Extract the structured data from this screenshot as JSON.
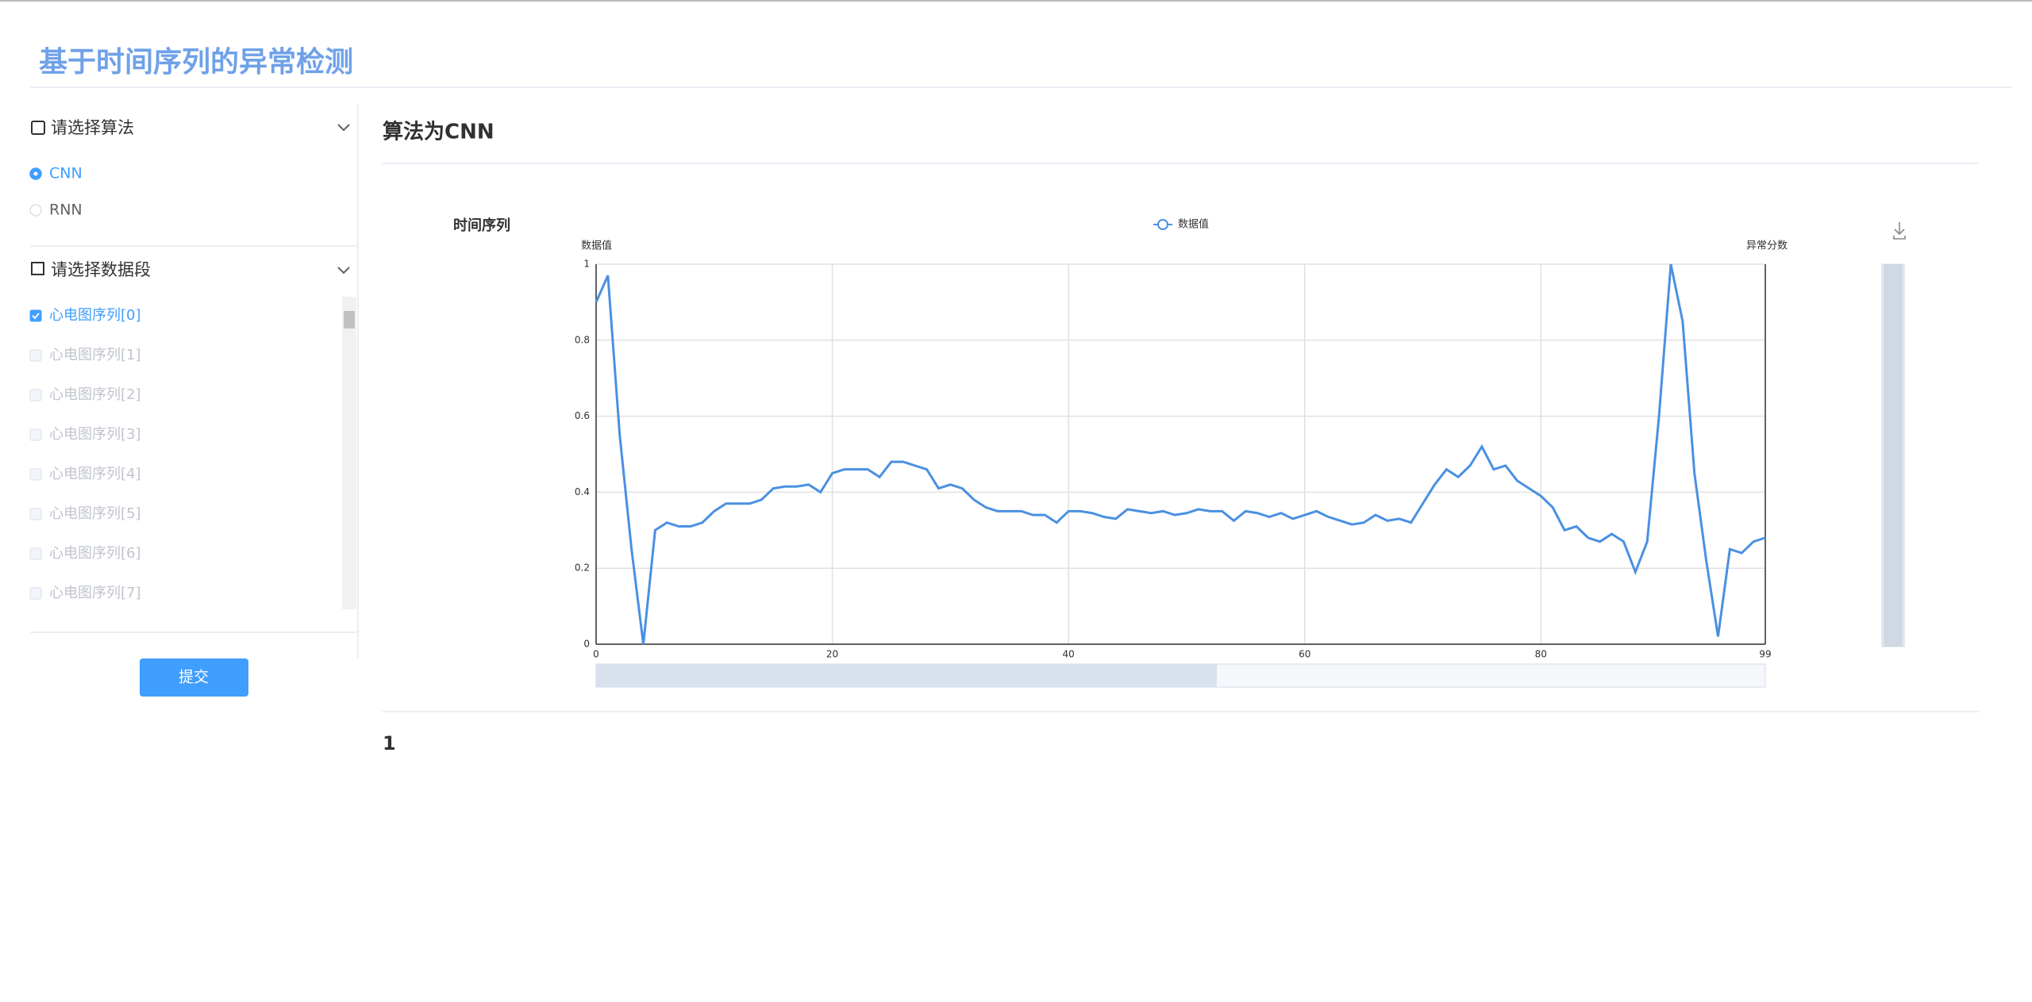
{
  "header": {
    "title": "基于时间序列的异常检测"
  },
  "sidebar": {
    "algorithm": {
      "title": "请选择算法",
      "options": [
        "CNN",
        "RNN"
      ],
      "selected": 0
    },
    "segment": {
      "title": "请选择数据段",
      "options": [
        "心电图序列[0]",
        "心电图序列[1]",
        "心电图序列[2]",
        "心电图序列[3]",
        "心电图序列[4]",
        "心电图序列[5]",
        "心电图序列[6]",
        "心电图序列[7]"
      ],
      "checked": 0
    },
    "submit": "提交"
  },
  "main": {
    "heading": "算法为CNN",
    "result": "1"
  },
  "chart_data": {
    "type": "line",
    "title": "时间序列",
    "y_label": "数据值",
    "y2_label": "异常分数",
    "x": [
      0,
      1,
      2,
      3,
      4,
      5,
      6,
      7,
      8,
      9,
      10,
      11,
      12,
      13,
      14,
      15,
      16,
      17,
      18,
      19,
      20,
      21,
      22,
      23,
      24,
      25,
      26,
      27,
      28,
      29,
      30,
      31,
      32,
      33,
      34,
      35,
      36,
      37,
      38,
      39,
      40,
      41,
      42,
      43,
      44,
      45,
      46,
      47,
      48,
      49,
      50,
      51,
      52,
      53,
      54,
      55,
      56,
      57,
      58,
      59,
      60,
      61,
      62,
      63,
      64,
      65,
      66,
      67,
      68,
      69,
      70,
      71,
      72,
      73,
      74,
      75,
      76,
      77,
      78,
      79,
      80,
      81,
      82,
      83,
      84,
      85,
      86,
      87,
      88,
      89,
      90,
      91,
      92,
      93,
      94,
      95,
      96,
      97,
      98,
      99
    ],
    "series": [
      {
        "name": "数据值",
        "color": "#4a90e2",
        "values": [
          0.9,
          0.97,
          0.55,
          0.25,
          0.0,
          0.3,
          0.32,
          0.31,
          0.31,
          0.32,
          0.35,
          0.37,
          0.37,
          0.37,
          0.38,
          0.41,
          0.415,
          0.415,
          0.42,
          0.4,
          0.45,
          0.46,
          0.46,
          0.46,
          0.44,
          0.48,
          0.48,
          0.47,
          0.46,
          0.41,
          0.42,
          0.41,
          0.38,
          0.36,
          0.35,
          0.35,
          0.35,
          0.34,
          0.34,
          0.32,
          0.35,
          0.35,
          0.345,
          0.335,
          0.33,
          0.355,
          0.35,
          0.345,
          0.35,
          0.34,
          0.345,
          0.355,
          0.35,
          0.35,
          0.325,
          0.35,
          0.345,
          0.335,
          0.345,
          0.33,
          0.34,
          0.35,
          0.335,
          0.325,
          0.315,
          0.32,
          0.34,
          0.325,
          0.33,
          0.32,
          0.37,
          0.42,
          0.46,
          0.44,
          0.47,
          0.52,
          0.46,
          0.47,
          0.43,
          0.41,
          0.39,
          0.36,
          0.3,
          0.31,
          0.28,
          0.27,
          0.29,
          0.27,
          0.19,
          0.27,
          0.6,
          1.0,
          0.85,
          0.45,
          0.22,
          0.02,
          0.25,
          0.24,
          0.27,
          0.28
        ]
      }
    ],
    "xlim": [
      0,
      99
    ],
    "xticks": [
      0,
      20,
      40,
      60,
      80,
      99
    ],
    "ylim": [
      0,
      1
    ],
    "yticks": [
      0,
      0.2,
      0.4,
      0.6,
      0.8,
      1
    ],
    "grid": true
  }
}
